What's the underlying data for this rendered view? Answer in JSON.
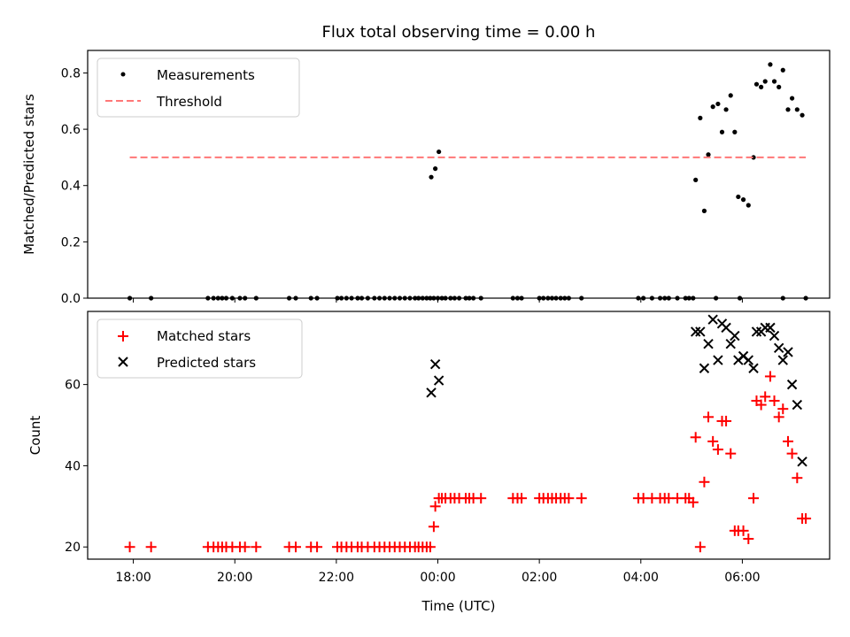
{
  "chart_data": [
    {
      "type": "scatter",
      "title": "Flux total observing time = 0.00 h",
      "xlabel": "",
      "ylabel": "Matched/Predicted stars",
      "ylim": [
        0,
        0.88
      ],
      "yticks": [
        0.0,
        0.2,
        0.4,
        0.6,
        0.8
      ],
      "ytick_labels": [
        "0.0",
        "0.2",
        "0.4",
        "0.6",
        "0.8"
      ],
      "xlim_hours": [
        17.1,
        31.72
      ],
      "xticks_hours": [
        18,
        20,
        22,
        24,
        26,
        28,
        30
      ],
      "legend_position": "upper left",
      "grid": false,
      "series": [
        {
          "name": "Measurements",
          "kind": "scatter",
          "color": "#000000",
          "x": [
            17.93,
            18.35,
            19.47,
            19.58,
            19.67,
            19.75,
            19.83,
            19.95,
            20.1,
            20.2,
            20.42,
            21.07,
            21.2,
            21.5,
            21.62,
            22.02,
            22.1,
            22.2,
            22.3,
            22.42,
            22.5,
            22.62,
            22.75,
            22.85,
            22.95,
            23.05,
            23.15,
            23.25,
            23.35,
            23.45,
            23.55,
            23.62,
            23.7,
            23.78,
            23.85,
            23.92,
            24.0,
            24.08,
            24.15,
            24.25,
            24.33,
            24.42,
            24.55,
            24.62,
            24.7,
            24.85,
            25.48,
            25.57,
            25.65,
            26.0,
            26.08,
            26.17,
            26.25,
            26.33,
            26.42,
            26.5,
            26.58,
            26.83,
            27.95,
            28.05,
            28.22,
            28.38,
            28.47,
            28.55,
            28.72,
            28.88,
            28.95,
            29.03,
            29.48,
            29.95,
            30.8,
            31.25,
            23.87,
            23.95,
            24.02,
            29.08,
            29.17,
            29.25,
            29.33,
            29.42,
            29.52,
            29.6,
            29.68,
            29.77,
            29.85,
            29.92,
            30.02,
            30.12,
            30.22,
            30.28,
            30.37,
            30.45,
            30.55,
            30.63,
            30.72,
            30.8,
            30.9,
            30.98,
            31.08,
            31.18
          ],
          "y": [
            0,
            0,
            0,
            0,
            0,
            0,
            0,
            0,
            0,
            0,
            0,
            0,
            0,
            0,
            0,
            0,
            0,
            0,
            0,
            0,
            0,
            0,
            0,
            0,
            0,
            0,
            0,
            0,
            0,
            0,
            0,
            0,
            0,
            0,
            0,
            0,
            0,
            0,
            0,
            0,
            0,
            0,
            0,
            0,
            0,
            0,
            0,
            0,
            0,
            0,
            0,
            0,
            0,
            0,
            0,
            0,
            0,
            0,
            0,
            0,
            0,
            0,
            0,
            0,
            0,
            0,
            0,
            0,
            0,
            0,
            0,
            0,
            0.43,
            0.46,
            0.52,
            0.42,
            0.64,
            0.31,
            0.51,
            0.68,
            0.69,
            0.59,
            0.67,
            0.72,
            0.59,
            0.36,
            0.35,
            0.33,
            0.5,
            0.76,
            0.75,
            0.77,
            0.83,
            0.77,
            0.75,
            0.81,
            0.67,
            0.71,
            0.67,
            0.65
          ]
        },
        {
          "name": "Threshold",
          "kind": "line",
          "style": "dashed",
          "color": "#ff7777",
          "x": [
            17.93,
            31.25
          ],
          "y": [
            0.5,
            0.5
          ]
        }
      ]
    },
    {
      "type": "scatter",
      "title": "",
      "xlabel": "Time (UTC)",
      "ylabel": "Count",
      "ylim": [
        17,
        78
      ],
      "yticks": [
        20,
        40,
        60
      ],
      "ytick_labels": [
        "20",
        "40",
        "60"
      ],
      "xlim_hours": [
        17.1,
        31.72
      ],
      "xticks_hours": [
        18,
        20,
        22,
        24,
        26,
        28,
        30
      ],
      "xtick_labels": [
        "18:00",
        "20:00",
        "22:00",
        "00:00",
        "02:00",
        "04:00",
        "06:00"
      ],
      "legend_position": "upper left",
      "grid": false,
      "series": [
        {
          "name": "Matched stars",
          "kind": "scatter",
          "marker": "plus",
          "color": "#ff0000",
          "x": [
            17.93,
            18.35,
            19.47,
            19.58,
            19.67,
            19.75,
            19.83,
            19.95,
            20.1,
            20.2,
            20.42,
            21.07,
            21.2,
            21.5,
            21.62,
            22.02,
            22.1,
            22.2,
            22.3,
            22.42,
            22.5,
            22.62,
            22.75,
            22.85,
            22.95,
            23.05,
            23.15,
            23.25,
            23.35,
            23.45,
            23.55,
            23.62,
            23.7,
            23.78,
            23.85,
            23.92,
            23.95,
            24.02,
            24.08,
            24.15,
            24.25,
            24.33,
            24.42,
            24.55,
            24.62,
            24.7,
            24.85,
            25.48,
            25.57,
            25.65,
            26.0,
            26.08,
            26.17,
            26.25,
            26.33,
            26.42,
            26.5,
            26.58,
            26.83,
            27.95,
            28.05,
            28.22,
            28.38,
            28.47,
            28.55,
            28.72,
            28.88,
            28.95,
            29.03,
            29.08,
            29.17,
            29.25,
            29.33,
            29.42,
            29.52,
            29.6,
            29.68,
            29.77,
            29.85,
            29.92,
            30.02,
            30.12,
            30.22,
            30.28,
            30.37,
            30.45,
            30.55,
            30.63,
            30.72,
            30.8,
            30.9,
            30.98,
            31.08,
            31.18,
            31.25
          ],
          "y": [
            20,
            20,
            20,
            20,
            20,
            20,
            20,
            20,
            20,
            20,
            20,
            20,
            20,
            20,
            20,
            20,
            20,
            20,
            20,
            20,
            20,
            20,
            20,
            20,
            20,
            20,
            20,
            20,
            20,
            20,
            20,
            20,
            20,
            20,
            20,
            25,
            30,
            32,
            32,
            32,
            32,
            32,
            32,
            32,
            32,
            32,
            32,
            32,
            32,
            32,
            32,
            32,
            32,
            32,
            32,
            32,
            32,
            32,
            32,
            32,
            32,
            32,
            32,
            32,
            32,
            32,
            32,
            32,
            31,
            47,
            20,
            36,
            52,
            46,
            44,
            51,
            51,
            43,
            24,
            24,
            24,
            22,
            32,
            56,
            55,
            57,
            62,
            56,
            52,
            54,
            46,
            43,
            37,
            27,
            27
          ]
        },
        {
          "name": "Predicted stars",
          "kind": "scatter",
          "marker": "x",
          "color": "#000000",
          "x": [
            23.87,
            23.95,
            24.02,
            29.08,
            29.17,
            29.25,
            29.33,
            29.42,
            29.52,
            29.6,
            29.68,
            29.77,
            29.85,
            29.92,
            30.02,
            30.12,
            30.22,
            30.28,
            30.37,
            30.45,
            30.55,
            30.63,
            30.72,
            30.8,
            30.9,
            30.98,
            31.08,
            31.18
          ],
          "y": [
            58,
            65,
            61,
            73,
            73,
            64,
            70,
            76,
            66,
            75,
            74,
            70,
            72,
            66,
            67,
            66,
            64,
            73,
            73,
            74,
            74,
            72,
            69,
            66,
            68,
            60,
            55,
            41
          ]
        }
      ]
    }
  ]
}
